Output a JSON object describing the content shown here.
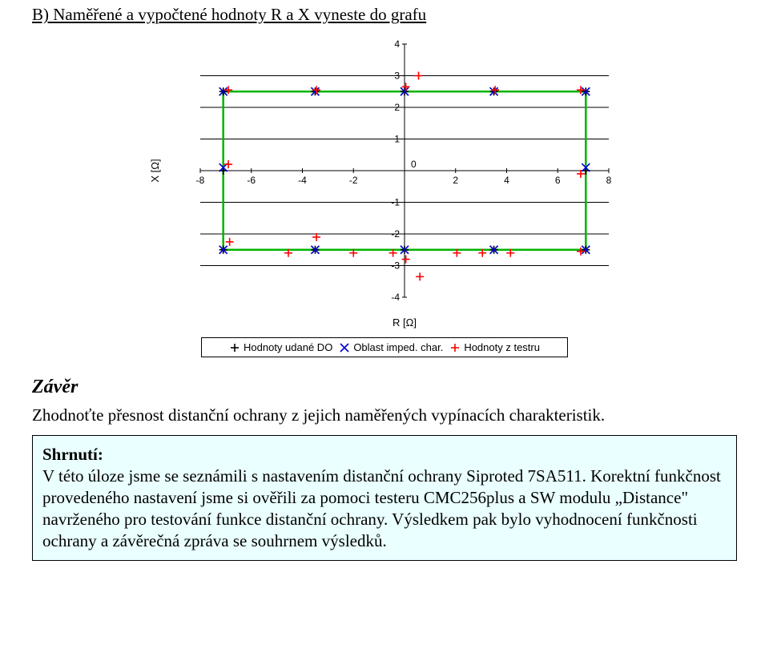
{
  "heading_b": "B) Naměřené a vypočtené hodnoty R a X vyneste do grafu",
  "chart": {
    "type": "scatter",
    "xlabel": "R [Ω]",
    "ylabel": "X [Ω]",
    "xlim": [
      -8,
      8
    ],
    "ylim": [
      -4,
      4
    ],
    "xtick_step": 2,
    "ytick_step": 1,
    "xticks": [
      -8,
      -6,
      -4,
      -2,
      0,
      2,
      4,
      6,
      8
    ],
    "yticks": [
      -4,
      -3,
      -2,
      -1,
      0,
      1,
      2,
      3,
      4
    ],
    "background_color": "#ffffff",
    "axis_color": "#000000",
    "tick_fontsize": 12,
    "label_fontsize": 13,
    "grid_y_lines": [
      -3,
      -2,
      -1,
      0,
      1,
      2,
      3
    ],
    "polygon": {
      "color": "#00b400",
      "stroke_width": 2.5,
      "points": [
        [
          -7.1,
          -2.5
        ],
        [
          -7.1,
          2.5
        ],
        [
          7.1,
          2.5
        ],
        [
          7.1,
          -2.5
        ],
        [
          -7.1,
          -2.5
        ]
      ]
    },
    "series": [
      {
        "name": "Hodnoty udané DO",
        "marker": "plus",
        "color": "#000000",
        "size": 10,
        "points": [
          [
            -7.1,
            -2.5
          ],
          [
            -7.1,
            2.5
          ],
          [
            7.1,
            2.5
          ],
          [
            7.1,
            -2.5
          ],
          [
            -7.1,
            0
          ],
          [
            7.1,
            0
          ],
          [
            -3.5,
            2.5
          ],
          [
            0,
            2.5
          ],
          [
            3.5,
            2.5
          ],
          [
            -3.5,
            -2.5
          ],
          [
            0,
            -2.5
          ],
          [
            3.5,
            -2.5
          ]
        ]
      },
      {
        "name": "Oblast imped. char.",
        "marker": "x",
        "color": "#0000d0",
        "size": 10,
        "points": [
          [
            -7.1,
            -2.5
          ],
          [
            -7.1,
            2.5
          ],
          [
            7.1,
            2.5
          ],
          [
            7.1,
            -2.5
          ],
          [
            -3.5,
            2.5
          ],
          [
            0,
            2.5
          ],
          [
            3.5,
            2.5
          ],
          [
            -3.5,
            -2.5
          ],
          [
            0,
            -2.5
          ],
          [
            3.5,
            -2.5
          ],
          [
            -7.1,
            0.1
          ],
          [
            7.1,
            0.1
          ]
        ]
      },
      {
        "name": "Hodnoty z testru",
        "marker": "plus",
        "color": "#ff0000",
        "size": 10,
        "points": [
          [
            -6.9,
            0.2
          ],
          [
            6.9,
            -0.1
          ],
          [
            -6.9,
            2.55
          ],
          [
            -3.45,
            2.55
          ],
          [
            0.05,
            2.65
          ],
          [
            0.55,
            3.0
          ],
          [
            3.55,
            2.55
          ],
          [
            6.9,
            2.55
          ],
          [
            -6.85,
            -2.25
          ],
          [
            -4.55,
            -2.6
          ],
          [
            -3.45,
            -2.1
          ],
          [
            -2.0,
            -2.6
          ],
          [
            -0.45,
            -2.6
          ],
          [
            0.05,
            -2.8
          ],
          [
            0.6,
            -3.35
          ],
          [
            2.05,
            -2.6
          ],
          [
            3.05,
            -2.6
          ],
          [
            4.15,
            -2.6
          ],
          [
            6.9,
            -2.55
          ]
        ]
      }
    ],
    "legend": {
      "border_color": "#000000",
      "background_color": "#ffffff",
      "fontsize": 13,
      "items": [
        {
          "marker": "plus",
          "color": "#000000",
          "label": "Hodnoty udané DO"
        },
        {
          "marker": "x",
          "color": "#0000d0",
          "label": "Oblast imped. char."
        },
        {
          "marker": "plus",
          "color": "#ff0000",
          "label": "Hodnoty z testru"
        }
      ]
    }
  },
  "conclusion": {
    "heading": "Závěr",
    "paragraph": "Zhodnoťte přesnost distanční ochrany z jejich naměřených vypínacích charakteristik."
  },
  "summary": {
    "bg_color": "#eaffff",
    "border_color": "#000000",
    "lead": "Shrnutí:",
    "body": "V této úloze jsme se seznámili s nastavením distanční ochrany Siproted 7SA511. Korektní funkčnost provedeného nastavení jsme si ověřili za pomoci testeru CMC256plus a SW modulu „Distance\" navrženého pro testování funkce distanční ochrany. Výsledkem pak bylo vyhodnocení funkčnosti ochrany a závěrečná zpráva se souhrnem výsledků."
  }
}
